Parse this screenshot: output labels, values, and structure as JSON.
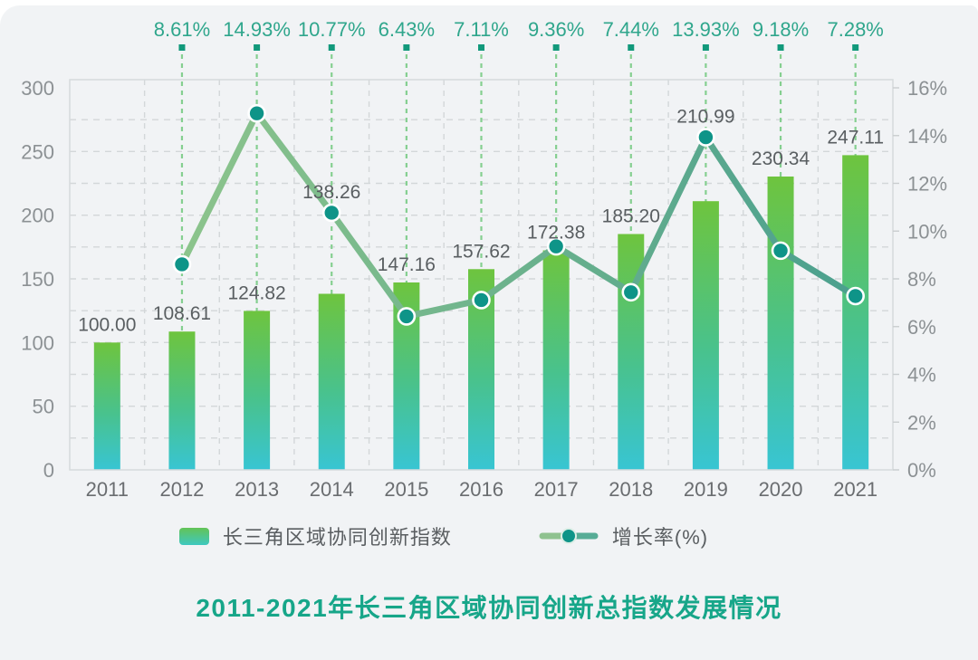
{
  "title": {
    "text": "2011-2021年长三角区域协同创新总指数发展情况",
    "color": "#17A689"
  },
  "legend": {
    "bar_label": "长三角区域协同创新指数",
    "line_label": "增长率(%)"
  },
  "colors": {
    "page_bg": "#FFFFFF",
    "panel_bg": "#F1F3F5",
    "bar_gradient_top": "#6EC43E",
    "bar_gradient_bottom": "#38C5D3",
    "line_gradient_start": "#8CC48C",
    "line_gradient_end": "#4BA08E",
    "marker_fill": "#0E9488",
    "marker_ring": "#FFFFFF",
    "growth_label_text": "#2FA68C",
    "growth_tick_square": "#12997B",
    "green_dash_line": "#85CF90",
    "gray_grid_line": "#D3D7D9",
    "plot_border": "#D6DADC",
    "axis_tick_text": "#8C9194",
    "data_label_text": "#595E61",
    "year_label_text": "#6A6D70"
  },
  "chart_data": {
    "type": "bar+line combo",
    "title": "2011-2021年长三角区域协同创新总指数发展情况",
    "categories": [
      "2011",
      "2012",
      "2013",
      "2014",
      "2015",
      "2016",
      "2017",
      "2018",
      "2019",
      "2020",
      "2021"
    ],
    "series": [
      {
        "name": "长三角区域协同创新指数",
        "type": "bar",
        "axis": "left",
        "values": [
          100.0,
          108.61,
          124.82,
          138.26,
          147.16,
          157.62,
          172.38,
          185.2,
          210.99,
          230.34,
          247.11
        ],
        "labels": [
          "100.00",
          "108.61",
          "124.82",
          "138.26",
          "147.16",
          "157.62",
          "172.38",
          "185.20",
          "210.99",
          "230.34",
          "247.11"
        ],
        "label_pos": [
          "bar",
          "bar",
          "bar",
          "marker",
          "bar",
          "bar",
          "bar",
          "bar",
          "marker",
          "bar",
          "bar"
        ]
      },
      {
        "name": "增长率(%)",
        "type": "line",
        "axis": "right",
        "values": [
          null,
          8.61,
          14.93,
          10.77,
          6.43,
          7.11,
          9.36,
          7.44,
          13.93,
          9.18,
          7.28
        ],
        "labels": [
          null,
          "8.61%",
          "14.93%",
          "10.77%",
          "6.43%",
          "7.11%",
          "9.36%",
          "7.44%",
          "13.93%",
          "9.18%",
          "7.28%"
        ]
      }
    ],
    "left_axis": {
      "min": 0,
      "max": 300,
      "major_step": 50,
      "minor_step": 25,
      "tick_labels": [
        "0",
        "50",
        "100",
        "150",
        "200",
        "250",
        "300"
      ]
    },
    "right_axis": {
      "min": 0,
      "max": 16,
      "step": 2,
      "tick_labels": [
        "0%",
        "2%",
        "4%",
        "6%",
        "8%",
        "10%",
        "12%",
        "14%",
        "16%"
      ]
    },
    "grid": "dashed",
    "legend_position": "bottom"
  }
}
